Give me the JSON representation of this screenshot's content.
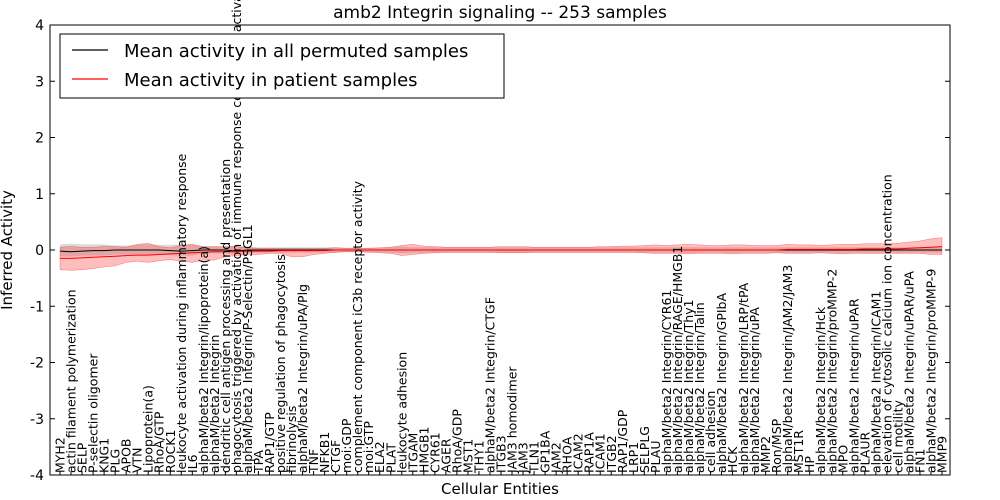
{
  "chart_data": {
    "type": "line",
    "title": "amb2 Integrin signaling -- 253 samples",
    "xlabel": "Cellular Entities",
    "ylabel": "Inferred Activity",
    "ylim": [
      -4,
      4
    ],
    "yticks": [
      "-4",
      "-3",
      "-2",
      "-1",
      "0",
      "1",
      "2",
      "3",
      "4"
    ],
    "yticks_num": [
      -4,
      -3,
      -2,
      -1,
      0,
      1,
      2,
      3,
      4
    ],
    "grid": false,
    "legend_position": "top-left",
    "categories": [
      "MYH2",
      "actin filament polymerization",
      "SELP",
      "P-selectin oligomer",
      "KNG1",
      "PLG",
      "APOB",
      "VTN",
      "Lipoprotein(a)",
      "RhoA/GTP",
      "ROCK1",
      "leukocyte activation during inflammatory response",
      "IL6",
      "alphaM/beta2 Integrin/lipoprotein(a)",
      "alphaM/beta2 Integrin",
      "dendritic cell antigen processing and presentation",
      "phagocytosis triggered by activation of immune response cell surface activating receptor",
      "alphaM/beta2 Integrin/P-Selectin/PSGL1",
      "TPA",
      "RAP1/GTP",
      "positive regulation of phagocytosis",
      "fibrinolysis",
      "alphaM/beta2 Integrin/uPA/Plg",
      "TNF",
      "NFKB1",
      "CTGF",
      "moi:GDP",
      "complement component iC3b receptor activity",
      "moi:GTP",
      "ELA2",
      "PLAT",
      "leukocyte adhesion",
      "ITGAM",
      "HMGB1",
      "CYR61",
      "AGER",
      "RhoA/GDP",
      "MST1",
      "THY1",
      "alphaM/beta2 Integrin/CTGF",
      "ITGB3",
      "JAM3 homodimer",
      "JAM3",
      "TLN1",
      "GP1BA",
      "JAM2",
      "RHOA",
      "ICAM2",
      "RAP1A",
      "ICAM1",
      "ITGB2",
      "RAP1/GDP",
      "LRP1",
      "SELPLG",
      "PLAU",
      "alphaM/beta2 Integrin/CYR61",
      "alphaM/beta2 Integrin/RAGE/HMGB1",
      "alphaM/beta2 Integrin/Thy1",
      "alphaM/beta2 Integrin/Talin",
      "cell adhesion",
      "alphaM/beta2 Integrin/GPIbA",
      "HCK",
      "alphaM/beta2 Integrin/LRP/tPA",
      "alphaM/beta2 Integrin/uPA",
      "MMP2",
      "Ron/MSP",
      "alphaM/beta2 Integrin/JAM2/JAM3",
      "MST1R",
      "HP",
      "alphaM/beta2 Integrin/Hck",
      "alphaM/beta2 Integrin/proMMP-2",
      "MPO",
      "alphaM/beta2 Integrin/uPAR",
      "PLAUR",
      "alphaM/beta2 Integrin/ICAM1",
      "elevation of cytosolic calcium ion concentration",
      "cell motility",
      "alphaM/beta2 Integrin/uPAR/uPA",
      "FN1",
      "alphaM/beta2 Integrin/proMMP-9",
      "MMP9"
    ],
    "series": [
      {
        "name": "Mean activity in all permuted samples",
        "color": "#000000",
        "values": [
          -0.02,
          -0.03,
          -0.02,
          -0.01,
          -0.01,
          0.0,
          0.0,
          0.0,
          0.0,
          0.0,
          -0.01,
          -0.02,
          -0.01,
          0.0,
          0.0,
          0.0,
          -0.02,
          0.0,
          0.0,
          0.0,
          0.0,
          0.0,
          0.0,
          0.0,
          0.0,
          0.0,
          0.0,
          0.0,
          0.0,
          0.0,
          0.0,
          0.0,
          0.0,
          0.0,
          0.0,
          0.0,
          0.0,
          0.0,
          0.0,
          0.0,
          0.0,
          0.0,
          0.0,
          0.0,
          0.0,
          0.0,
          0.0,
          0.0,
          0.0,
          0.0,
          0.0,
          0.0,
          0.0,
          0.0,
          0.0,
          0.0,
          0.0,
          0.0,
          0.0,
          0.0,
          0.0,
          0.0,
          0.0,
          0.0,
          0.0,
          0.0,
          0.0,
          0.0,
          0.0,
          0.0,
          0.0,
          0.0,
          0.0,
          0.0,
          0.0,
          0.0,
          0.0,
          0.0,
          0.0,
          0.0,
          0.0
        ],
        "band_low": [
          -0.11,
          -0.12,
          -0.1,
          -0.1,
          -0.1,
          -0.08,
          -0.08,
          -0.08,
          -0.08,
          -0.08,
          -0.09,
          -0.1,
          -0.1,
          -0.06,
          -0.06,
          -0.06,
          -0.08,
          -0.06,
          -0.05,
          -0.05,
          -0.05,
          -0.05,
          -0.05,
          -0.05,
          -0.05,
          -0.05,
          -0.04,
          -0.04,
          -0.04,
          -0.04,
          -0.05,
          -0.06,
          -0.05,
          -0.05,
          -0.05,
          -0.05,
          -0.05,
          -0.05,
          -0.05,
          -0.05,
          -0.05,
          -0.05,
          -0.05,
          -0.05,
          -0.05,
          -0.05,
          -0.05,
          -0.05,
          -0.05,
          -0.05,
          -0.05,
          -0.05,
          -0.05,
          -0.05,
          -0.05,
          -0.05,
          -0.05,
          -0.05,
          -0.05,
          -0.05,
          -0.05,
          -0.05,
          -0.05,
          -0.05,
          -0.05,
          -0.05,
          -0.05,
          -0.05,
          -0.05,
          -0.05,
          -0.05,
          -0.05,
          -0.05,
          -0.05,
          -0.05,
          -0.05,
          -0.05,
          -0.05,
          -0.05,
          -0.05,
          -0.05
        ],
        "band_high": [
          0.1,
          0.11,
          0.1,
          0.1,
          0.1,
          0.08,
          0.08,
          0.09,
          0.1,
          0.09,
          0.09,
          0.1,
          0.1,
          0.06,
          0.06,
          0.06,
          0.08,
          0.06,
          0.05,
          0.05,
          0.05,
          0.05,
          0.05,
          0.05,
          0.05,
          0.05,
          0.04,
          0.04,
          0.04,
          0.04,
          0.05,
          0.06,
          0.05,
          0.05,
          0.05,
          0.05,
          0.05,
          0.05,
          0.05,
          0.05,
          0.05,
          0.05,
          0.05,
          0.05,
          0.05,
          0.05,
          0.05,
          0.05,
          0.05,
          0.05,
          0.05,
          0.05,
          0.05,
          0.05,
          0.05,
          0.05,
          0.05,
          0.05,
          0.05,
          0.05,
          0.05,
          0.05,
          0.05,
          0.05,
          0.05,
          0.05,
          0.05,
          0.05,
          0.05,
          0.05,
          0.05,
          0.05,
          0.05,
          0.05,
          0.05,
          0.05,
          0.05,
          0.05,
          0.05,
          0.05,
          0.05
        ]
      },
      {
        "name": "Mean activity in patient samples",
        "color": "#ff0000",
        "values": [
          -0.15,
          -0.15,
          -0.14,
          -0.13,
          -0.12,
          -0.11,
          -0.1,
          -0.09,
          -0.09,
          -0.08,
          -0.07,
          -0.06,
          -0.05,
          -0.04,
          -0.03,
          -0.03,
          -0.03,
          -0.02,
          -0.02,
          -0.02,
          -0.01,
          -0.01,
          -0.01,
          -0.01,
          -0.01,
          0.0,
          0.0,
          0.0,
          0.0,
          0.0,
          0.0,
          0.0,
          0.0,
          0.0,
          0.0,
          0.0,
          0.0,
          0.0,
          0.0,
          0.0,
          0.0,
          0.0,
          0.0,
          0.0,
          0.0,
          0.0,
          0.0,
          0.0,
          0.0,
          0.0,
          0.0,
          0.0,
          0.0,
          0.0,
          0.0,
          0.0,
          0.0,
          0.0,
          0.0,
          0.0,
          0.0,
          0.0,
          0.0,
          0.0,
          0.0,
          0.0,
          0.01,
          0.01,
          0.01,
          0.01,
          0.01,
          0.01,
          0.01,
          0.02,
          0.02,
          0.02,
          0.02,
          0.03,
          0.04,
          0.05,
          0.06
        ],
        "band_low": [
          -0.35,
          -0.36,
          -0.35,
          -0.33,
          -0.3,
          -0.28,
          -0.22,
          -0.2,
          -0.22,
          -0.19,
          -0.17,
          -0.2,
          -0.22,
          -0.18,
          -0.18,
          -0.12,
          -0.1,
          -0.08,
          -0.08,
          -0.06,
          -0.06,
          -0.12,
          -0.12,
          -0.08,
          -0.06,
          -0.04,
          -0.03,
          -0.03,
          -0.04,
          -0.05,
          -0.06,
          -0.1,
          -0.08,
          -0.06,
          -0.05,
          -0.04,
          -0.04,
          -0.04,
          -0.04,
          -0.04,
          -0.05,
          -0.05,
          -0.05,
          -0.04,
          -0.04,
          -0.04,
          -0.04,
          -0.04,
          -0.04,
          -0.04,
          -0.04,
          -0.04,
          -0.04,
          -0.05,
          -0.06,
          -0.06,
          -0.06,
          -0.07,
          -0.06,
          -0.06,
          -0.06,
          -0.07,
          -0.06,
          -0.06,
          -0.06,
          -0.05,
          -0.06,
          -0.06,
          -0.06,
          -0.05,
          -0.06,
          -0.07,
          -0.06,
          -0.06,
          -0.06,
          -0.06,
          -0.06,
          -0.06,
          -0.06,
          -0.08,
          -0.08
        ],
        "band_high": [
          0.05,
          0.06,
          0.05,
          0.05,
          0.06,
          0.06,
          0.05,
          0.1,
          0.12,
          0.06,
          0.04,
          0.08,
          0.1,
          0.06,
          0.06,
          0.06,
          0.06,
          0.04,
          0.03,
          0.03,
          0.03,
          0.03,
          0.03,
          0.03,
          0.03,
          0.04,
          0.03,
          0.03,
          0.03,
          0.04,
          0.05,
          0.08,
          0.1,
          0.07,
          0.06,
          0.05,
          0.05,
          0.05,
          0.05,
          0.05,
          0.06,
          0.06,
          0.06,
          0.05,
          0.05,
          0.05,
          0.05,
          0.05,
          0.05,
          0.06,
          0.06,
          0.07,
          0.07,
          0.08,
          0.09,
          0.08,
          0.09,
          0.1,
          0.09,
          0.08,
          0.08,
          0.09,
          0.09,
          0.08,
          0.08,
          0.08,
          0.1,
          0.09,
          0.09,
          0.08,
          0.09,
          0.1,
          0.1,
          0.11,
          0.11,
          0.11,
          0.12,
          0.14,
          0.16,
          0.2,
          0.22
        ]
      }
    ]
  }
}
